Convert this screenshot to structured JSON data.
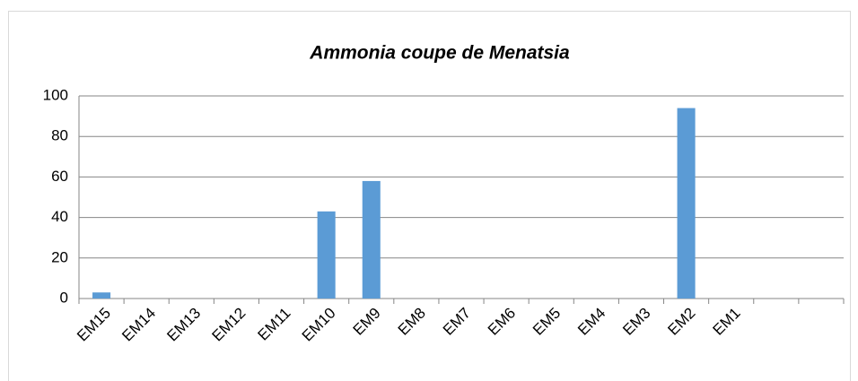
{
  "chart_data": {
    "type": "bar",
    "title": "Ammonia coupe  de  Menatsia",
    "categories": [
      "EM15",
      "EM14",
      "EM13",
      "EM12",
      "EM11",
      "EM10",
      "EM9",
      "EM8",
      "EM7",
      "EM6",
      "EM5",
      "EM4",
      "EM3",
      "EM2",
      "EM1",
      null,
      null
    ],
    "values": [
      3,
      0,
      0,
      0,
      0,
      43,
      58,
      0,
      0,
      0,
      0,
      0,
      0,
      94,
      0,
      null,
      null
    ],
    "color": "#5b9bd5",
    "ylim": [
      0,
      100
    ],
    "yticks": [
      0,
      20,
      40,
      60,
      80,
      100
    ],
    "grid": true
  }
}
